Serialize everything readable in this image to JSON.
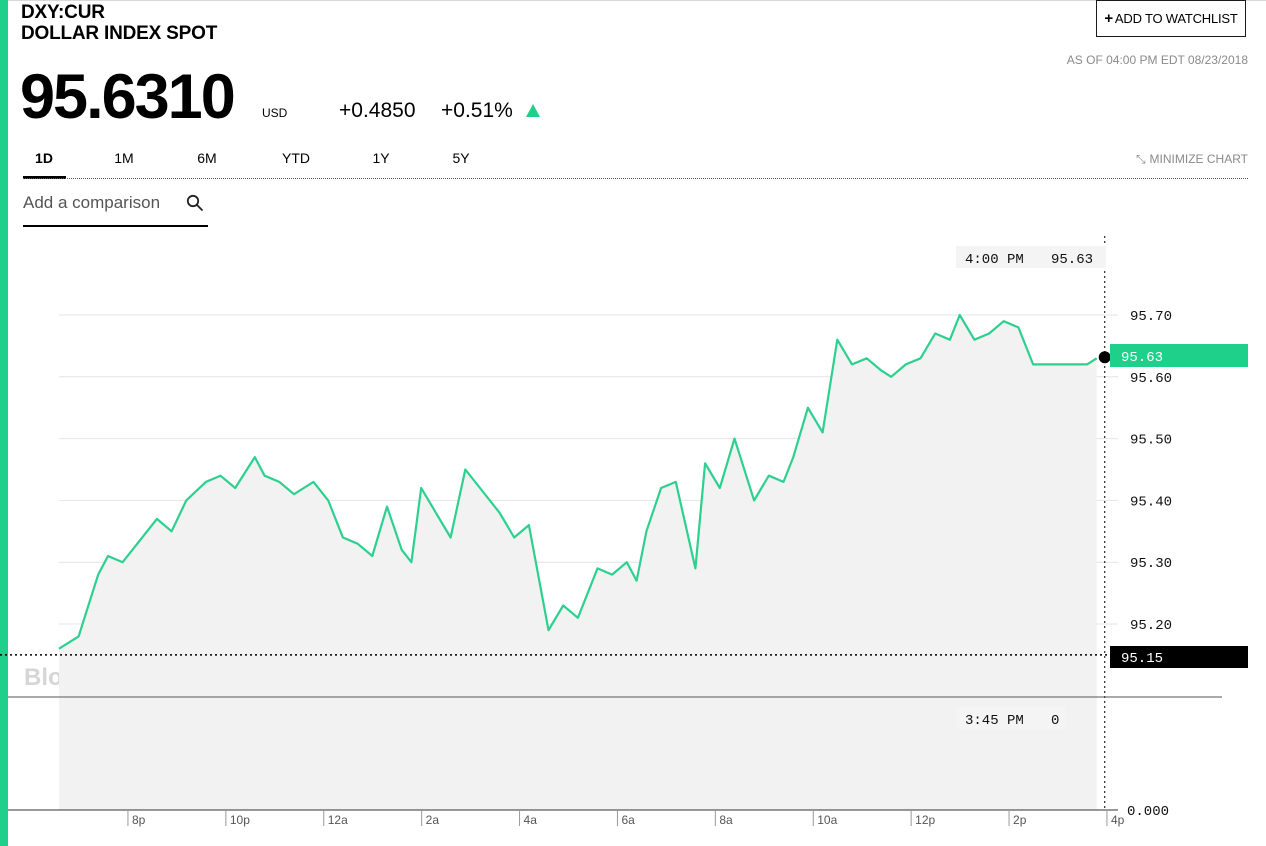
{
  "header": {
    "ticker": "DXY:CUR",
    "name": "DOLLAR INDEX SPOT",
    "watchlist_label": "ADD TO WATCHLIST",
    "as_of": "AS OF 04:00 PM EDT 08/23/2018"
  },
  "quote": {
    "price": "95.6310",
    "currency": "USD",
    "change": "+0.4850",
    "change_pct": "+0.51%"
  },
  "ranges": [
    "1D",
    "1M",
    "6M",
    "YTD",
    "1Y",
    "5Y"
  ],
  "active_range": "1D",
  "minimize_label": "MINIMIZE CHART",
  "comparison": {
    "placeholder": "Add a comparison"
  },
  "colors": {
    "accent": "#1ed08a",
    "line": "#2dd08f",
    "area": "#f2f2f2",
    "tooltip_bg": "#f4f4f4"
  },
  "icons": {
    "search": "search-icon",
    "minimize": "minimize-arrows-icon",
    "add": "plus-icon",
    "direction": "up-triangle-icon"
  },
  "chart_data": {
    "type": "area",
    "watermark": "BloombergMarkets",
    "x_tick_labels": [
      "8p",
      "10p",
      "12a",
      "2a",
      "4a",
      "6a",
      "8a",
      "10a",
      "12p",
      "2p",
      "4p"
    ],
    "y_tick_labels": [
      "95.70",
      "95.60",
      "95.50",
      "95.40",
      "95.30",
      "95.20"
    ],
    "volume_axis_label": "0.000",
    "ylim": [
      95.13,
      95.73
    ],
    "grid": true,
    "x_unit": "hours after 7:00 PM",
    "series": [
      {
        "x": [
          0.0,
          0.4,
          0.8,
          1.0,
          1.3,
          1.6,
          2.0,
          2.3,
          2.6,
          3.0,
          3.3,
          3.6,
          4.0,
          4.2,
          4.5,
          4.8,
          5.0,
          5.2,
          5.5,
          5.8,
          6.1,
          6.4,
          6.7,
          7.0,
          7.2,
          7.4,
          7.7,
          8.0,
          8.3,
          8.6,
          9.0,
          9.3,
          9.6,
          10.0,
          10.3,
          10.6,
          11.0,
          11.3,
          11.6,
          11.8,
          12.0,
          12.3,
          12.6,
          13.0,
          13.2,
          13.5,
          13.8,
          14.2,
          14.5,
          14.8,
          15.0,
          15.3,
          15.6,
          15.9,
          16.2,
          16.5,
          16.8,
          17.0,
          17.3,
          17.6,
          17.9,
          18.2,
          18.4,
          18.7,
          19.0,
          19.3,
          19.6,
          19.9,
          20.2,
          20.4,
          20.7,
          21.0,
          21.2
        ],
        "values": [
          95.16,
          95.18,
          95.28,
          95.31,
          95.3,
          95.33,
          95.37,
          95.35,
          95.4,
          95.43,
          95.44,
          95.42,
          95.47,
          95.44,
          95.43,
          95.41,
          95.42,
          95.43,
          95.4,
          95.34,
          95.33,
          95.31,
          95.39,
          95.32,
          95.3,
          95.42,
          95.38,
          95.34,
          95.45,
          95.42,
          95.38,
          95.34,
          95.36,
          95.19,
          95.23,
          95.21,
          95.29,
          95.28,
          95.3,
          95.27,
          95.35,
          95.42,
          95.43,
          95.29,
          95.46,
          95.42,
          95.5,
          95.4,
          95.44,
          95.43,
          95.47,
          95.55,
          95.51,
          95.66,
          95.62,
          95.63,
          95.61,
          95.6,
          95.62,
          95.63,
          95.67,
          95.66,
          95.7,
          95.66,
          95.67,
          95.69,
          95.68,
          95.62,
          95.62,
          95.62,
          95.62,
          95.62,
          95.63
        ]
      }
    ],
    "last_point": {
      "time": "4:00 PM",
      "value": "95.63"
    },
    "reference_line": {
      "value": "95.15"
    },
    "volume_tooltip": {
      "time": "3:45 PM",
      "value": "0"
    },
    "current_label": "95.63"
  }
}
